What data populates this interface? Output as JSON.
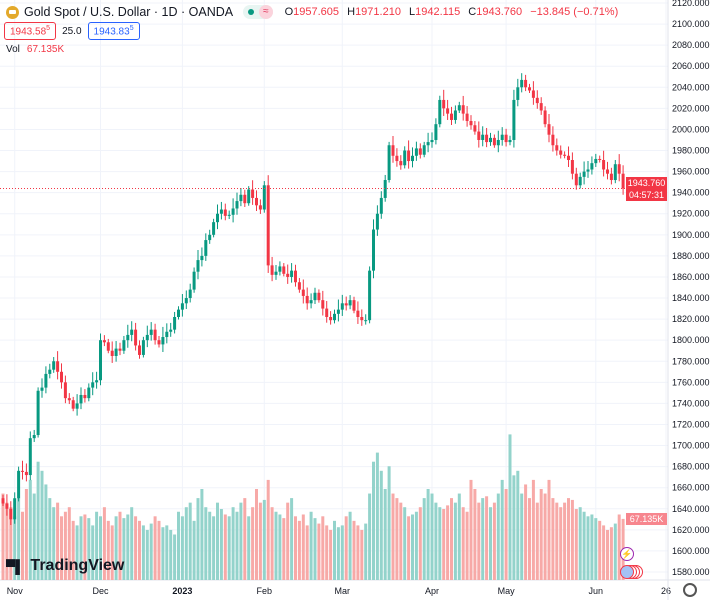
{
  "header": {
    "title": "Gold Spot / U.S. Dollar · 1D · OANDA",
    "market_status_icon": "market-open-dot",
    "badge": "≈",
    "o_label": "O",
    "o": "1957.605",
    "h_label": "H",
    "h": "1971.210",
    "l_label": "L",
    "l": "1942.115",
    "c_label": "C",
    "c": "1943.760",
    "change": "−13.845 (−0.71%)"
  },
  "trade": {
    "sell": "1943.58",
    "sell_sup": "5",
    "spread": "25.0",
    "buy": "1943.83",
    "buy_sup": "5"
  },
  "volume": {
    "label": "Vol",
    "value": "67.135K"
  },
  "price_label": {
    "price": "1943.760",
    "countdown": "04:57:31"
  },
  "volume_label": "67.135K",
  "brand": "TradingView",
  "colors": {
    "up": "#089981",
    "down": "#f23645",
    "up_vol": "#93d3cb",
    "down_vol": "#f7a9a7"
  },
  "chart_data": {
    "type": "candlestick",
    "title": "Gold Spot / U.S. Dollar · 1D · OANDA",
    "ylim": [
      1580,
      2120
    ],
    "y_ticks": [
      "2120.000",
      "2100.000",
      "2080.000",
      "2060.000",
      "2040.000",
      "2020.000",
      "2000.000",
      "1980.000",
      "1960.000",
      "1940.000",
      "1920.000",
      "1900.000",
      "1880.000",
      "1860.000",
      "1840.000",
      "1820.000",
      "1800.000",
      "1780.000",
      "1760.000",
      "1740.000",
      "1720.000",
      "1700.000",
      "1680.000",
      "1660.000",
      "1640.000",
      "1620.000",
      "1600.000",
      "1580.000"
    ],
    "x_ticks": [
      {
        "label": "Nov",
        "bar": 3
      },
      {
        "label": "Dec",
        "bar": 25
      },
      {
        "label": "2023",
        "bar": 46
      },
      {
        "label": "Feb",
        "bar": 67
      },
      {
        "label": "Mar",
        "bar": 87
      },
      {
        "label": "Apr",
        "bar": 110
      },
      {
        "label": "May",
        "bar": 129
      },
      {
        "label": "Jun",
        "bar": 152
      },
      {
        "label": "26",
        "bar": 170
      }
    ],
    "first_open": 1650,
    "closes": [
      1645,
      1640,
      1630,
      1650,
      1676,
      1675,
      1672,
      1707,
      1710,
      1752,
      1755,
      1768,
      1772,
      1780,
      1770,
      1760,
      1745,
      1743,
      1735,
      1740,
      1748,
      1745,
      1755,
      1760,
      1762,
      1800,
      1798,
      1790,
      1785,
      1792,
      1790,
      1800,
      1805,
      1810,
      1795,
      1786,
      1800,
      1805,
      1810,
      1800,
      1796,
      1803,
      1808,
      1810,
      1822,
      1829,
      1835,
      1840,
      1848,
      1865,
      1876,
      1880,
      1895,
      1900,
      1912,
      1920,
      1924,
      1918,
      1919,
      1925,
      1932,
      1938,
      1930,
      1943,
      1935,
      1928,
      1924,
      1947,
      1871,
      1862,
      1865,
      1870,
      1863,
      1860,
      1866,
      1855,
      1848,
      1842,
      1835,
      1838,
      1845,
      1838,
      1830,
      1822,
      1819,
      1825,
      1829,
      1835,
      1833,
      1838,
      1828,
      1822,
      1819,
      1819,
      1866,
      1905,
      1920,
      1935,
      1952,
      1985,
      1975,
      1970,
      1966,
      1980,
      1970,
      1975,
      1982,
      1976,
      1985,
      1988,
      1990,
      2005,
      2028,
      2020,
      2015,
      2009,
      2018,
      2023,
      2015,
      2008,
      2004,
      1998,
      1990,
      1995,
      1988,
      1992,
      1985,
      1990,
      1995,
      1988,
      1990,
      2028,
      2040,
      2047,
      2040,
      2037,
      2030,
      2025,
      2018,
      2005,
      1995,
      1985,
      1980,
      1976,
      1975,
      1971,
      1958,
      1947,
      1955,
      1960,
      1962,
      1968,
      1972,
      1971,
      1962,
      1958,
      1952,
      1967,
      1958,
      1944
    ],
    "volumes_k": [
      95,
      85,
      80,
      70,
      90,
      75,
      100,
      110,
      95,
      130,
      120,
      105,
      90,
      80,
      85,
      70,
      75,
      80,
      65,
      60,
      70,
      72,
      68,
      60,
      75,
      70,
      80,
      65,
      60,
      70,
      75,
      68,
      72,
      80,
      70,
      65,
      60,
      55,
      62,
      70,
      65,
      58,
      60,
      55,
      50,
      75,
      70,
      80,
      85,
      65,
      90,
      100,
      80,
      75,
      70,
      85,
      78,
      72,
      70,
      80,
      75,
      85,
      90,
      70,
      80,
      100,
      85,
      88,
      110,
      80,
      75,
      72,
      68,
      85,
      90,
      70,
      65,
      72,
      60,
      75,
      68,
      62,
      70,
      60,
      55,
      65,
      58,
      60,
      70,
      75,
      65,
      60,
      55,
      62,
      95,
      130,
      140,
      120,
      100,
      125,
      95,
      90,
      85,
      80,
      70,
      72,
      75,
      80,
      90,
      100,
      95,
      85,
      80,
      78,
      82,
      90,
      85,
      95,
      80,
      75,
      110,
      100,
      85,
      90,
      92,
      80,
      85,
      95,
      110,
      100,
      160,
      115,
      120,
      95,
      105,
      90,
      110,
      85,
      100,
      95,
      110,
      90,
      85,
      80,
      85,
      90,
      88,
      78,
      80,
      75,
      70,
      72,
      68,
      65,
      60,
      55,
      58,
      62,
      72,
      67.135
    ]
  }
}
